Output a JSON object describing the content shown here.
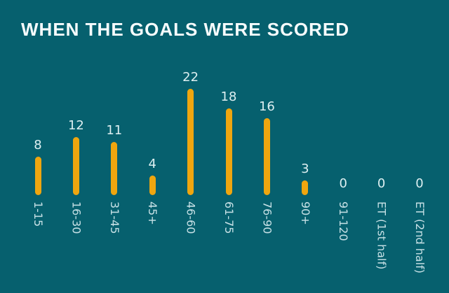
{
  "chart_data": {
    "type": "bar",
    "title": "WHEN THE GOALS WERE SCORED",
    "categories": [
      "1-15",
      "16-30",
      "31-45",
      "45+",
      "46-60",
      "61-75",
      "76-90",
      "90+",
      "91-120",
      "ET (1st half)",
      "ET (2nd half)"
    ],
    "values": [
      8,
      12,
      11,
      4,
      22,
      18,
      16,
      3,
      0,
      0,
      0
    ],
    "xlabel": "",
    "ylabel": "",
    "ylim": [
      0,
      22
    ],
    "grid": false,
    "legend": null,
    "bar_labels_shown": true,
    "x_tick_rotation_deg": 90,
    "colors": {
      "background": "#06606e",
      "bar": "#efa60f",
      "value_label": "#ddeff1",
      "tick_label": "#c6e0e5",
      "title": "#f6fcfd"
    }
  }
}
